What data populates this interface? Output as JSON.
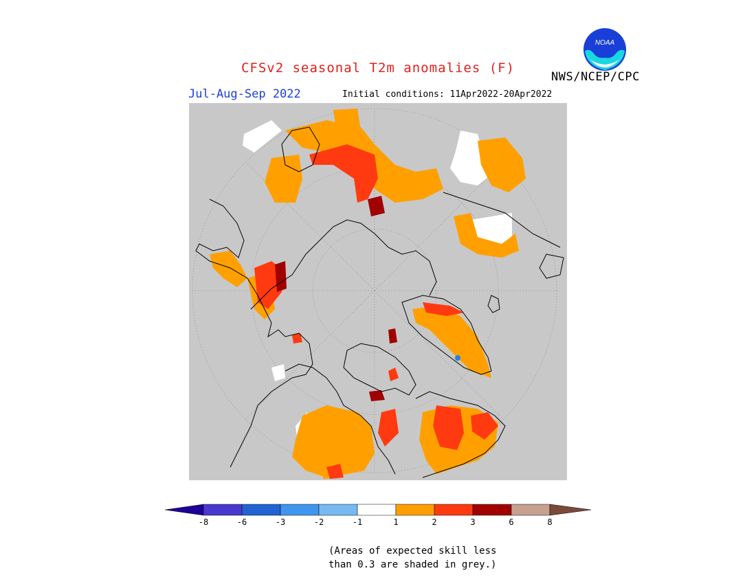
{
  "header": {
    "title": "CFSv2 seasonal T2m anomalies (F)",
    "period": "Jul-Aug-Sep 2022",
    "initial_conditions": "Initial conditions: 11Apr2022-20Apr2022",
    "agency": "NWS/NCEP/CPC",
    "logo_text": "NOAA"
  },
  "map": {
    "projection": "north polar stereographic",
    "background_color": "#c8c8c8",
    "coastline_color": "#000000"
  },
  "legend": {
    "ticks": [
      "-8",
      "-6",
      "-3",
      "-2",
      "-1",
      "1",
      "2",
      "3",
      "6",
      "8"
    ],
    "colors": [
      "#1e0096",
      "#4b38d0",
      "#1f64d0",
      "#3f96ee",
      "#77baf2",
      "#ffffff",
      "#ffa000",
      "#ff3a10",
      "#a00000",
      "#c8a090",
      "#7a4a3a"
    ]
  },
  "note": {
    "line1": "(Areas of expected skill less",
    "line2": "than 0.3 are shaded in grey.)"
  }
}
